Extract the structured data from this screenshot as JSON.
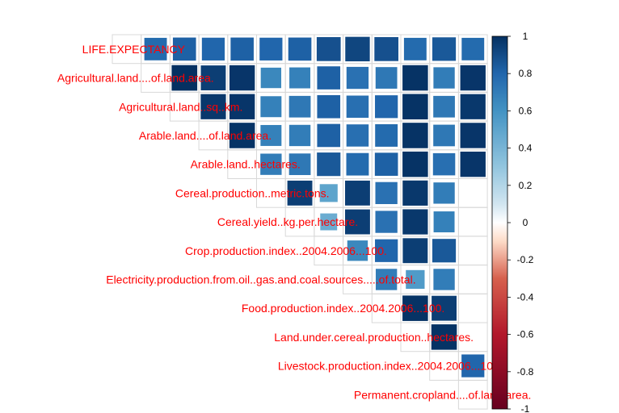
{
  "chart_data": {
    "type": "heatmap",
    "variables": [
      "LIFE.EXPECTANCY",
      "Agricultural.land....of.land.area.",
      "Agricultural.land..sq..km.",
      "Arable.land....of.land.area.",
      "Arable.land..hectares.",
      "Cereal.production..metric.tons.",
      "Cereal.yield..kg.per.hectare.",
      "Crop.production.index..2004.2006...100.",
      "Electricity.production.from.oil..gas.and.coal.sources.....of.total.",
      "Food.production.index..2004.2006...100.",
      "Land.under.cereal.production..hectares.",
      "Livestock.production.index..2004.2006...100.",
      "Permanent.cropland....of.land.area."
    ],
    "correlations": [
      [
        null,
        0.78,
        0.82,
        0.8,
        0.82,
        0.8,
        0.82,
        0.88,
        0.92,
        0.88,
        0.78,
        0.85,
        0.78
      ],
      [
        null,
        null,
        1.0,
        0.95,
        0.98,
        0.65,
        0.68,
        0.82,
        0.75,
        0.72,
        0.99,
        0.7,
        0.98
      ],
      [
        null,
        null,
        null,
        0.97,
        0.98,
        0.68,
        0.72,
        0.82,
        0.76,
        0.8,
        0.99,
        0.72,
        0.97
      ],
      [
        null,
        null,
        null,
        null,
        0.99,
        0.68,
        0.7,
        0.82,
        0.76,
        0.78,
        0.99,
        0.72,
        0.98
      ],
      [
        null,
        null,
        null,
        null,
        null,
        0.7,
        0.72,
        0.85,
        0.78,
        0.82,
        0.99,
        0.76,
        0.98
      ],
      [
        null,
        null,
        null,
        null,
        null,
        null,
        0.95,
        0.5,
        0.95,
        0.75,
        0.97,
        0.7,
        null
      ],
      [
        null,
        null,
        null,
        null,
        null,
        null,
        null,
        0.45,
        0.95,
        0.75,
        0.97,
        0.68,
        null
      ],
      [
        null,
        null,
        null,
        null,
        null,
        null,
        null,
        null,
        0.65,
        0.8,
        0.95,
        0.85,
        null
      ],
      [
        null,
        null,
        null,
        null,
        null,
        null,
        null,
        null,
        null,
        0.7,
        0.55,
        0.7,
        null
      ],
      [
        null,
        null,
        null,
        null,
        null,
        null,
        null,
        null,
        null,
        null,
        0.99,
        0.95,
        null
      ],
      [
        null,
        null,
        null,
        null,
        null,
        null,
        null,
        null,
        null,
        null,
        null,
        0.99,
        null
      ],
      [
        null,
        null,
        null,
        null,
        null,
        null,
        null,
        null,
        null,
        null,
        null,
        null,
        0.8
      ],
      [
        null,
        null,
        null,
        null,
        null,
        null,
        null,
        null,
        null,
        null,
        null,
        null,
        null
      ]
    ],
    "legend_ticks": [
      "1",
      "0.8",
      "0.6",
      "0.4",
      "0.2",
      "0",
      "-0.2",
      "-0.4",
      "-0.6",
      "-0.8",
      "-1"
    ],
    "legend_range": [
      -1,
      1
    ],
    "legend_placement": "right",
    "colors": {
      "label": "#ff0000",
      "positive": "#053061",
      "neutral": "#ffffff",
      "negative": "#67001f",
      "cell_border": "#ffffff",
      "grid": "#d8d8d8"
    }
  }
}
